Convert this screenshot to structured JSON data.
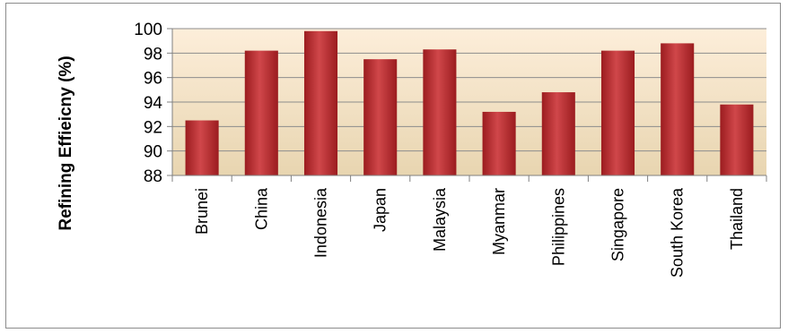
{
  "chart_data": {
    "type": "bar",
    "title": "",
    "xlabel": "",
    "ylabel": "Refining Effieicny (%)",
    "ylim": [
      88,
      100
    ],
    "yticks": [
      88,
      90,
      92,
      94,
      96,
      98,
      100
    ],
    "grid": true,
    "legend": "none",
    "categories": [
      "Brunei",
      "China",
      "Indonesia",
      "Japan",
      "Malaysia",
      "Myanmar",
      "Philippines",
      "Singapore",
      "South Korea",
      "Thailand"
    ],
    "values": [
      92.5,
      98.2,
      99.8,
      97.5,
      98.3,
      93.2,
      94.8,
      98.2,
      98.8,
      93.8
    ],
    "colors": {
      "bar_light": "#d0474a",
      "bar_dark": "#9b1c1f",
      "plot_bg_top": "#fdeeda",
      "plot_bg_bottom": "#e8d5b0",
      "gridline": "#8c8c8c"
    }
  }
}
